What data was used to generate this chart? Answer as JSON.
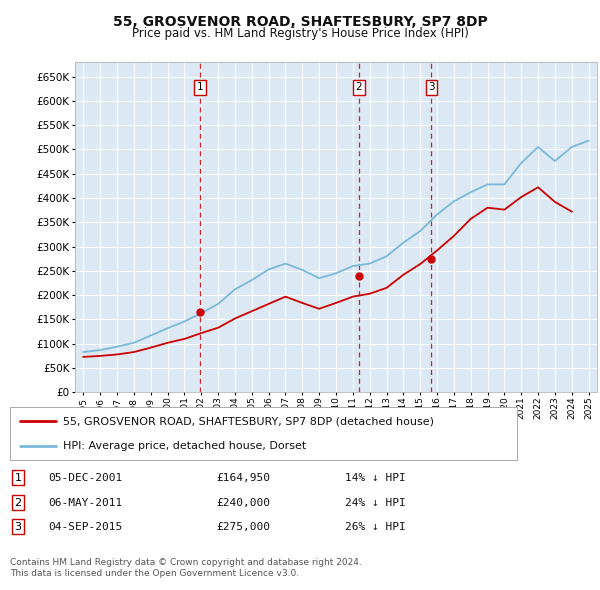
{
  "title": "55, GROSVENOR ROAD, SHAFTESBURY, SP7 8DP",
  "subtitle": "Price paid vs. HM Land Registry's House Price Index (HPI)",
  "background_color": "#ffffff",
  "plot_bg_color": "#dce9f5",
  "grid_color": "#ffffff",
  "hpi_color": "#7ab8d9",
  "price_color": "#cc0000",
  "dashed_color": "#cc0000",
  "sales": [
    {
      "label": "1",
      "date_num": 2001.92,
      "price": 164950,
      "x_label": "05-DEC-2001",
      "pct": "14%",
      "dir": "↓"
    },
    {
      "label": "2",
      "date_num": 2011.35,
      "price": 240000,
      "x_label": "06-MAY-2011",
      "pct": "24%",
      "dir": "↓"
    },
    {
      "label": "3",
      "date_num": 2015.67,
      "price": 275000,
      "x_label": "04-SEP-2015",
      "pct": "26%",
      "dir": "↓"
    }
  ],
  "legend_line1": "55, GROSVENOR ROAD, SHAFTESBURY, SP7 8DP (detached house)",
  "legend_line2": "HPI: Average price, detached house, Dorset",
  "footer1": "Contains HM Land Registry data © Crown copyright and database right 2024.",
  "footer2": "This data is licensed under the Open Government Licence v3.0.",
  "ylim_max": 680000,
  "yticks": [
    0,
    50000,
    100000,
    150000,
    200000,
    250000,
    300000,
    350000,
    400000,
    450000,
    500000,
    550000,
    600000,
    650000
  ],
  "xlim_start": 1994.5,
  "xlim_end": 2025.5,
  "hpi_years": [
    1995,
    1996,
    1997,
    1998,
    1999,
    2000,
    2001,
    2002,
    2003,
    2004,
    2005,
    2006,
    2007,
    2008,
    2009,
    2010,
    2011,
    2012,
    2013,
    2014,
    2015,
    2016,
    2017,
    2018,
    2019,
    2020,
    2021,
    2022,
    2023,
    2024,
    2025
  ],
  "hpi_values": [
    83000,
    87000,
    94000,
    102000,
    117000,
    132000,
    146000,
    163000,
    182000,
    212000,
    231000,
    253000,
    265000,
    252000,
    235000,
    245000,
    260000,
    265000,
    280000,
    308000,
    332000,
    366000,
    393000,
    412000,
    428000,
    428000,
    472000,
    505000,
    476000,
    505000,
    518000
  ],
  "price_years": [
    1995,
    1996,
    1997,
    1998,
    1999,
    2000,
    2001,
    2002,
    2003,
    2004,
    2005,
    2006,
    2007,
    2008,
    2009,
    2010,
    2011,
    2012,
    2013,
    2014,
    2015,
    2016,
    2017,
    2018,
    2019,
    2020,
    2021,
    2022,
    2023,
    2024
  ],
  "price_values": [
    73000,
    75000,
    78000,
    83000,
    92000,
    102000,
    110000,
    122000,
    133000,
    152000,
    167000,
    182000,
    197000,
    184000,
    172000,
    184000,
    197000,
    203000,
    215000,
    242000,
    264000,
    292000,
    322000,
    357000,
    380000,
    376000,
    402000,
    422000,
    392000,
    372000
  ]
}
